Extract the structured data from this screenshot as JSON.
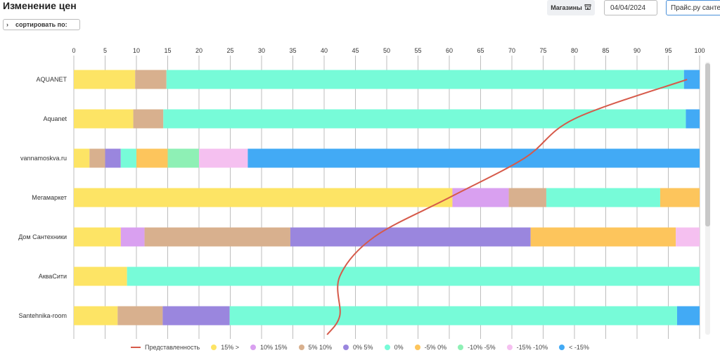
{
  "header": {
    "title": "Изменение цен",
    "sort_label": "сортировать по:",
    "stores_label": "Магазины",
    "date_value": "04/04/2024",
    "price_source": "Прайс.ру санте"
  },
  "icons": {
    "sort_chevron": "chevron-right-icon",
    "stores": "store-icon"
  },
  "chart_data": {
    "type": "bar",
    "orientation": "horizontal",
    "stacked": true,
    "xlim": [
      0,
      100
    ],
    "x_ticks": [
      0,
      5,
      10,
      15,
      20,
      25,
      30,
      35,
      40,
      45,
      50,
      55,
      60,
      65,
      70,
      75,
      80,
      85,
      90,
      95,
      100
    ],
    "grid": true,
    "legend_position": "bottom",
    "categories": [
      "AQUANET",
      "Aquanet",
      "vannamoskva.ru",
      "Мегамаркет",
      "Дом Сантехники",
      "АкваСити",
      "Santehnika-room"
    ],
    "series": [
      {
        "name": "15% >",
        "color": "#fde465",
        "values": [
          9.8,
          9.5,
          2.5,
          60.5,
          7.5,
          8.5,
          7.0
        ]
      },
      {
        "name": "10% 15%",
        "color": "#d9a0f0",
        "values": [
          0,
          0,
          0,
          9.0,
          3.8,
          0,
          0
        ]
      },
      {
        "name": "5% 10%",
        "color": "#d8b08e",
        "values": [
          5.0,
          4.8,
          2.5,
          6.0,
          23.3,
          0,
          7.2
        ]
      },
      {
        "name": "0% 5%",
        "color": "#9a86de",
        "values": [
          0,
          0,
          2.5,
          0,
          38.4,
          0,
          10.7
        ]
      },
      {
        "name": "0%",
        "color": "#77fbd8",
        "values": [
          82.7,
          83.5,
          2.5,
          18.2,
          0,
          91.5,
          71.5
        ]
      },
      {
        "name": "-5% 0%",
        "color": "#fdc55c",
        "values": [
          0,
          0,
          5.0,
          6.3,
          23.2,
          0,
          0
        ]
      },
      {
        "name": "-10% -5%",
        "color": "#8ef0b5",
        "values": [
          0,
          0,
          5.0,
          0,
          0,
          0,
          0
        ]
      },
      {
        "name": "-15% -10%",
        "color": "#f5c0f0",
        "values": [
          0,
          0,
          7.8,
          0,
          3.8,
          0,
          0
        ]
      },
      {
        "name": "< -15%",
        "color": "#42aaf5",
        "values": [
          2.5,
          2.2,
          72.2,
          0,
          0,
          0,
          3.6
        ]
      }
    ],
    "line_series": {
      "name": "Представленность",
      "color": "#d65a4a",
      "points": [
        {
          "category": "AQUANET",
          "value": 98
        },
        {
          "category": "Aquanet",
          "value": 80
        },
        {
          "category": "vannamoskva.ru",
          "value": 72
        },
        {
          "category": "Мегамаркет",
          "value": 60
        },
        {
          "category": "Дом Сантехники",
          "value": 48
        },
        {
          "category": "АкваСити",
          "value": 42.5
        },
        {
          "category": "Santehnika-room",
          "value": 42.5
        }
      ]
    }
  }
}
